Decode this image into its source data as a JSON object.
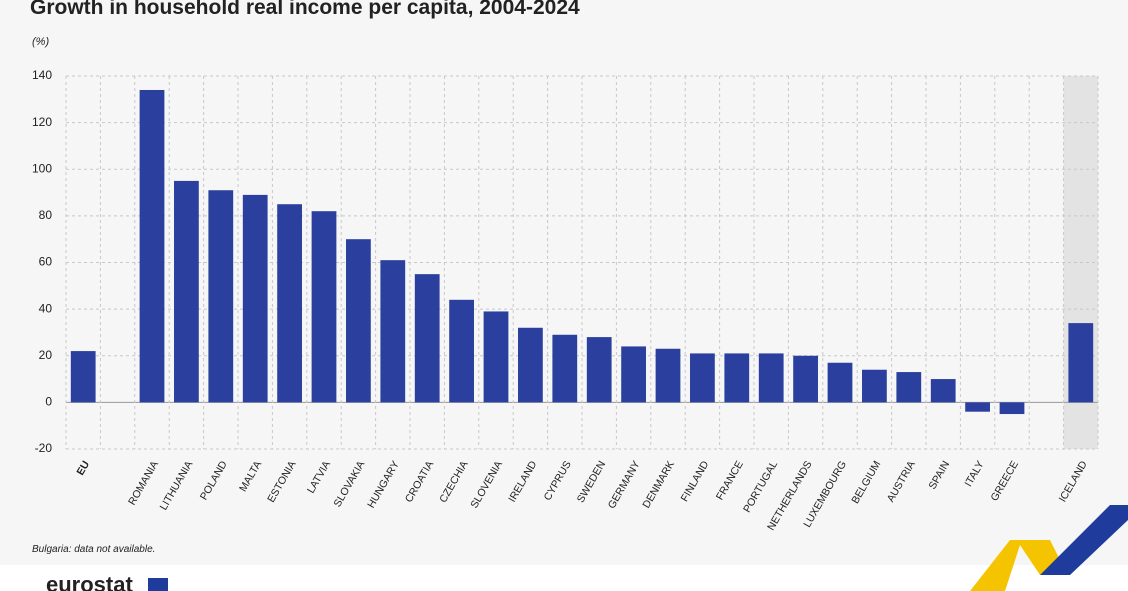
{
  "chart_data": {
    "type": "bar",
    "title": "Growth in household real income per capita, 2004-2024",
    "unit_label": "(%)",
    "footnote": "Bulgaria: data not available.",
    "source": "eurostat",
    "categories": [
      "EU",
      null,
      "ROMANIA",
      "LITHUANIA",
      "POLAND",
      "MALTA",
      "ESTONIA",
      "LATVIA",
      "SLOVAKIA",
      "HUNGARY",
      "CROATIA",
      "CZECHIA",
      "SLOVENIA",
      "IRELAND",
      "CYPRUS",
      "SWEDEN",
      "GERMANY",
      "DENMARK",
      "FINLAND",
      "FRANCE",
      "PORTUGAL",
      "NETHERLANDS",
      "LUXEMBOURG",
      "BELGIUM",
      "AUSTRIA",
      "SPAIN",
      "ITALY",
      "GREECE",
      null,
      "ICELAND"
    ],
    "values": [
      22,
      null,
      134,
      95,
      91,
      89,
      85,
      82,
      70,
      61,
      55,
      44,
      39,
      32,
      29,
      28,
      24,
      23,
      21,
      21,
      21,
      20,
      17,
      14,
      13,
      10,
      -4,
      -5,
      null,
      34
    ],
    "color": "#2a3f9e",
    "ylim": [
      -20,
      140
    ],
    "yticks": [
      -20,
      0,
      20,
      40,
      60,
      80,
      100,
      120,
      140
    ],
    "grid": true
  }
}
